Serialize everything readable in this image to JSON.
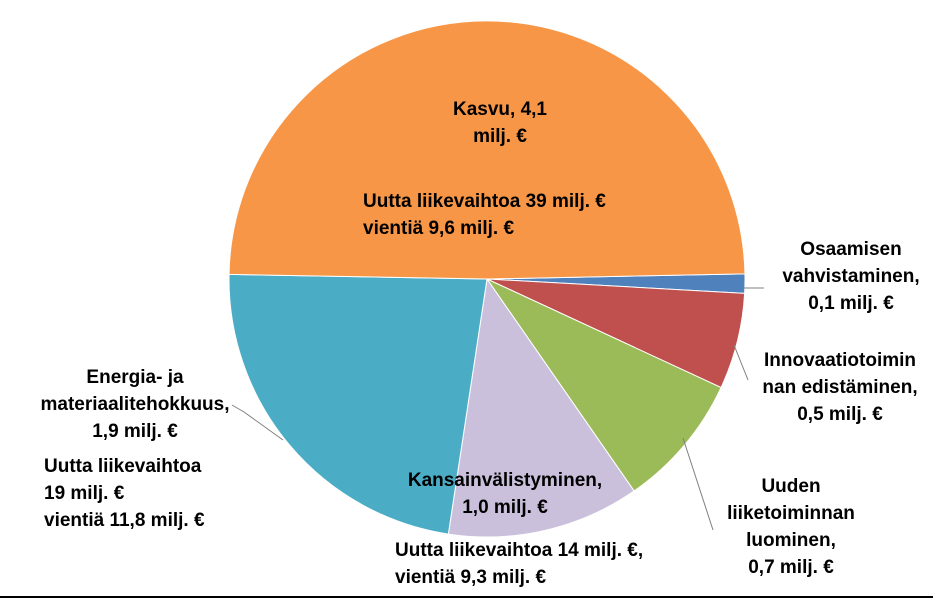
{
  "chart_data": {
    "type": "pie",
    "unit": "milj. €",
    "slices": [
      {
        "name": "Osaamisen vahvistaminen",
        "value": 0.1,
        "color": "#4F81BD"
      },
      {
        "name": "Innovaatiotoiminnan edistäminen",
        "value": 0.5,
        "color": "#C0504D"
      },
      {
        "name": "Uuden liiketoiminnan luominen",
        "value": 0.7,
        "color": "#9BBB59"
      },
      {
        "name": "Kansainvälistyminen",
        "value": 1.0,
        "color": "#CBC0DB"
      },
      {
        "name": "Energia- ja materiaalitehokkuus",
        "value": 1.9,
        "color": "#4BACC6"
      },
      {
        "name": "Kasvu",
        "value": 4.1,
        "color": "#F79646"
      }
    ],
    "labels": {
      "kasvu": "Kasvu, 4,1\nmilj. €",
      "kasvu_extra": "Uutta liikevaihtoa 39 milj. €\nvientiä 9,6 milj. €",
      "osaamisen": "Osaamisen\nvahvistaminen,\n0,1 milj. €",
      "innovaatio": "Innovaatiotoimin\nnan edistäminen,\n0,5 milj. €",
      "uuden": "Uuden\nliiketoiminnan\nluominen,\n0,7 milj. €",
      "kansainval": "Kansainvälistyminen,\n1,0 milj. €",
      "kansainval_extra": "Uutta liikevaihtoa 14 milj. €,\nvientiä 9,3 milj. €",
      "energia": "Energia- ja\nmateriaalitehokkuus,\n1,9 milj. €",
      "energia_extra": "Uutta liikevaihtoa\n19 milj. €\nvientiä 11,8 milj. €"
    }
  }
}
